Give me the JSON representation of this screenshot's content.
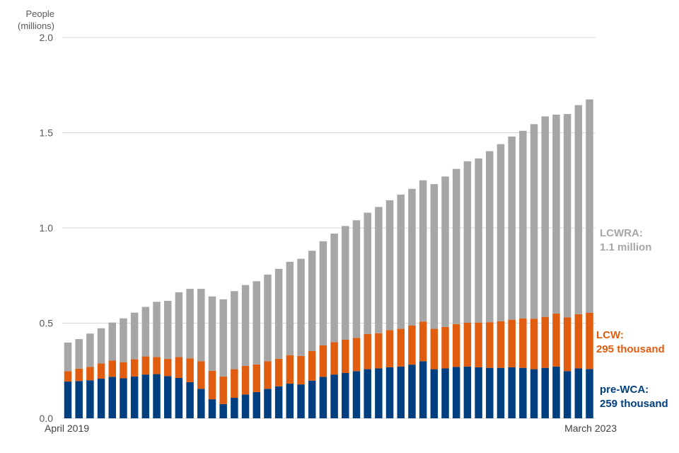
{
  "chart_data": {
    "type": "bar",
    "stacked": true,
    "ylabel_lines": [
      "People",
      "(millions)"
    ],
    "ylim": [
      0,
      2.0
    ],
    "yticks": [
      "0.0",
      "0.5",
      "1.0",
      "1.5",
      "2.0"
    ],
    "grid": true,
    "x_start_label": "April 2019",
    "x_end_label": "March 2023",
    "series": [
      {
        "name_lines": [
          "pre-WCA:",
          "259 thousand"
        ],
        "color": "#003f7f",
        "values": [
          0.193,
          0.196,
          0.2,
          0.208,
          0.218,
          0.21,
          0.22,
          0.23,
          0.232,
          0.222,
          0.212,
          0.19,
          0.155,
          0.1,
          0.075,
          0.108,
          0.125,
          0.138,
          0.155,
          0.168,
          0.182,
          0.178,
          0.198,
          0.218,
          0.23,
          0.238,
          0.248,
          0.258,
          0.262,
          0.268,
          0.272,
          0.282,
          0.3,
          0.258,
          0.262,
          0.27,
          0.272,
          0.268,
          0.265,
          0.265,
          0.268,
          0.265,
          0.258,
          0.265,
          0.272,
          0.248,
          0.262,
          0.259
        ]
      },
      {
        "name_lines": [
          "LCW:",
          "295 thousand"
        ],
        "color": "#e05c0e",
        "values": [
          0.055,
          0.065,
          0.07,
          0.08,
          0.085,
          0.085,
          0.09,
          0.095,
          0.09,
          0.09,
          0.11,
          0.125,
          0.145,
          0.15,
          0.145,
          0.15,
          0.15,
          0.145,
          0.145,
          0.145,
          0.15,
          0.15,
          0.155,
          0.165,
          0.17,
          0.175,
          0.175,
          0.185,
          0.185,
          0.195,
          0.198,
          0.205,
          0.208,
          0.212,
          0.218,
          0.225,
          0.23,
          0.235,
          0.24,
          0.245,
          0.25,
          0.26,
          0.265,
          0.268,
          0.278,
          0.282,
          0.285,
          0.295
        ]
      },
      {
        "name_lines": [
          "LCWRA:",
          "1.1 million"
        ],
        "color": "#a6a6a6",
        "values": [
          0.15,
          0.155,
          0.175,
          0.185,
          0.2,
          0.23,
          0.245,
          0.26,
          0.29,
          0.305,
          0.34,
          0.365,
          0.38,
          0.39,
          0.405,
          0.41,
          0.425,
          0.437,
          0.455,
          0.472,
          0.49,
          0.51,
          0.527,
          0.547,
          0.57,
          0.597,
          0.617,
          0.637,
          0.663,
          0.682,
          0.705,
          0.718,
          0.742,
          0.76,
          0.79,
          0.815,
          0.848,
          0.862,
          0.898,
          0.93,
          0.962,
          0.985,
          1.022,
          1.053,
          1.045,
          1.068,
          1.098,
          1.121
        ]
      }
    ]
  }
}
